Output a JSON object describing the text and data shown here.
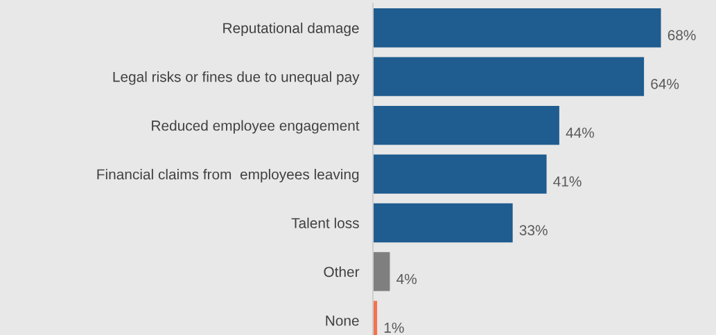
{
  "chart_data": {
    "type": "bar",
    "orientation": "horizontal",
    "categories": [
      "Reputational damage",
      "Legal risks or fines due to unequal pay",
      "Reduced employee engagement",
      "Financial claims from  employees leaving",
      "Talent loss",
      "Other",
      "None"
    ],
    "values": [
      68,
      64,
      44,
      41,
      33,
      4,
      1
    ],
    "value_labels": [
      "68%",
      "64%",
      "44%",
      "41%",
      "33%",
      "4%",
      "1%"
    ],
    "colors": [
      "#1f5c8f",
      "#1f5c8f",
      "#1f5c8f",
      "#1f5c8f",
      "#1f5c8f",
      "#7f7f7f",
      "#f4724f"
    ],
    "xlim": [
      0,
      81
    ],
    "tick_labels": "y",
    "grid": false,
    "legend": false
  }
}
